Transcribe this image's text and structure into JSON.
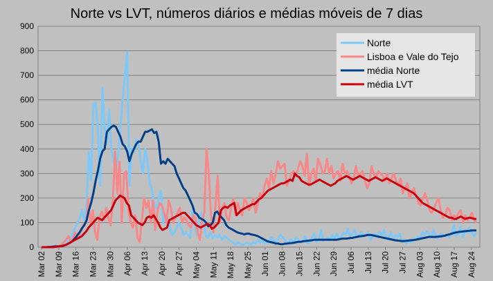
{
  "chart_data": {
    "type": "line",
    "title": "Norte vs LVT, números diários e médias móveis de 7 dias",
    "xlabel": "",
    "ylabel": "",
    "ylim": [
      0,
      900
    ],
    "yticks": [
      0,
      100,
      200,
      300,
      400,
      500,
      600,
      700,
      800,
      900
    ],
    "xtick_labels": [
      "Mar 02",
      "Mar 09",
      "Mar 16",
      "Mar 23",
      "Mar 30",
      "Apr 06",
      "Apr 13",
      "Apr 20",
      "Apr 27",
      "May 04",
      "May 11",
      "May 18",
      "May 25",
      "Jun 01",
      "Jun 08",
      "Jun 15",
      "Jun 22",
      "Jun 29",
      "Jul 06",
      "Jul 13",
      "Jul 20",
      "Jul 27",
      "Aug 03",
      "Aug 10",
      "Aug 17",
      "Aug 24"
    ],
    "x_start": "2020-03-02",
    "x_end": "2020-08-26",
    "grid": true,
    "legend_position": "top-right",
    "series": [
      {
        "name": "Norte",
        "color": "#7ec8f8",
        "values": [
          0,
          0,
          0,
          2,
          2,
          4,
          5,
          3,
          3,
          5,
          10,
          15,
          35,
          40,
          60,
          80,
          100,
          120,
          150,
          110,
          180,
          390,
          270,
          580,
          590,
          480,
          250,
          650,
          480,
          420,
          560,
          400,
          350,
          300,
          380,
          490,
          600,
          700,
          795,
          250,
          400,
          390,
          440,
          420,
          350,
          300,
          400,
          350,
          260,
          240,
          170,
          160,
          200,
          230,
          100,
          130,
          110,
          80,
          50,
          60,
          80,
          100,
          80,
          50,
          60,
          50,
          40,
          150,
          90,
          50,
          120,
          140,
          100,
          45,
          40,
          60,
          35,
          50,
          40,
          50,
          30,
          45,
          40,
          30,
          25,
          20,
          10,
          20,
          15,
          10,
          10,
          20,
          15,
          10,
          20,
          15,
          30,
          20,
          25,
          15,
          20,
          20,
          40,
          30,
          20,
          30,
          50,
          40,
          30,
          20,
          25,
          30,
          20,
          40,
          30,
          20,
          25,
          45,
          15,
          20,
          40,
          55,
          20,
          30,
          70,
          25,
          30,
          40,
          30,
          50,
          35,
          55,
          35,
          45,
          60,
          50,
          75,
          45,
          55,
          70,
          40,
          50,
          60,
          45,
          50,
          60,
          30,
          45,
          55,
          45,
          60,
          50,
          70,
          40,
          40,
          60,
          35,
          50,
          40,
          55,
          20,
          30,
          15,
          25,
          20,
          35,
          30,
          45,
          35,
          60,
          50,
          65,
          55,
          40,
          70,
          45,
          35,
          55,
          50,
          45,
          50,
          40,
          55,
          90,
          45,
          55,
          85,
          40,
          70,
          60,
          80,
          55,
          45,
          60
        ],
        "approx": true
      },
      {
        "name": "Lisboa e Vale do Tejo",
        "color": "#f88888",
        "values": [
          0,
          0,
          0,
          0,
          0,
          0,
          5,
          3,
          5,
          10,
          20,
          30,
          45,
          25,
          30,
          60,
          40,
          50,
          70,
          95,
          100,
          200,
          90,
          150,
          60,
          30,
          120,
          145,
          110,
          160,
          120,
          90,
          200,
          390,
          220,
          350,
          100,
          300,
          310,
          150,
          100,
          80,
          130,
          40,
          20,
          110,
          200,
          160,
          190,
          100,
          190,
          70,
          150,
          180,
          170,
          140,
          100,
          190,
          160,
          100,
          120,
          140,
          160,
          100,
          120,
          110,
          90,
          80,
          130,
          120,
          60,
          30,
          110,
          140,
          400,
          300,
          130,
          60,
          170,
          290,
          100,
          160,
          180,
          120,
          110,
          160,
          200,
          130,
          180,
          150,
          130,
          200,
          180,
          150,
          170,
          200,
          140,
          180,
          220,
          200,
          250,
          280,
          240,
          310,
          260,
          300,
          350,
          320,
          330,
          340,
          250,
          270,
          300,
          310,
          290,
          320,
          350,
          330,
          290,
          380,
          250,
          300,
          320,
          270,
          360,
          340,
          300,
          310,
          360,
          300,
          330,
          280,
          300,
          310,
          270,
          340,
          300,
          310,
          290,
          260,
          280,
          330,
          290,
          300,
          310,
          270,
          240,
          260,
          330,
          300,
          280,
          310,
          300,
          290,
          270,
          300,
          260,
          280,
          300,
          270,
          250,
          280,
          220,
          240,
          260,
          200,
          220,
          240,
          210,
          180,
          170,
          200,
          220,
          190,
          150,
          140,
          160,
          180,
          200,
          150,
          120,
          130,
          160,
          150,
          110,
          130,
          120,
          140,
          150,
          100,
          130,
          110,
          120,
          140,
          110,
          100
        ],
        "approx": true
      },
      {
        "name": "média Norte",
        "color": "#003f88",
        "values": [
          0,
          0,
          0,
          1,
          1,
          2,
          3,
          3,
          4,
          5,
          7,
          10,
          15,
          20,
          28,
          38,
          50,
          62,
          78,
          90,
          110,
          150,
          180,
          220,
          270,
          310,
          360,
          390,
          400,
          470,
          480,
          490,
          495,
          490,
          470,
          450,
          420,
          410,
          390,
          350,
          380,
          400,
          420,
          430,
          430,
          450,
          470,
          470,
          475,
          480,
          465,
          470,
          430,
          340,
          350,
          340,
          360,
          350,
          340,
          330,
          300,
          280,
          260,
          240,
          230,
          210,
          190,
          170,
          140,
          135,
          120,
          115,
          110,
          100,
          85,
          90,
          100,
          140,
          145,
          130,
          120,
          110,
          90,
          80,
          75,
          70,
          65,
          60,
          57,
          55,
          52,
          55,
          55,
          52,
          50,
          48,
          45,
          40,
          35,
          30,
          25,
          22,
          20,
          18,
          15,
          15,
          12,
          12,
          14,
          15,
          16,
          17,
          18,
          20,
          22,
          22,
          24,
          25,
          26,
          27,
          28,
          30,
          30,
          30,
          30,
          30,
          30,
          30,
          30,
          30,
          30,
          30,
          32,
          34,
          35,
          35,
          36,
          37,
          38,
          40,
          42,
          44,
          45,
          46,
          48,
          50,
          50,
          48,
          46,
          44,
          42,
          40,
          38,
          36,
          34,
          32,
          30,
          28,
          27,
          26,
          25,
          25,
          26,
          27,
          28,
          29,
          30,
          32,
          34,
          36,
          38,
          40,
          42,
          42,
          42,
          42,
          43,
          44,
          45,
          47,
          50,
          52,
          55,
          58,
          60,
          62,
          63,
          64,
          65,
          66,
          67,
          68,
          68,
          68
        ],
        "approx": true
      },
      {
        "name": "média LVT",
        "color": "#c8000c",
        "values": [
          0,
          0,
          0,
          0,
          0,
          0,
          1,
          2,
          3,
          4,
          7,
          10,
          15,
          20,
          25,
          30,
          35,
          40,
          45,
          55,
          65,
          80,
          90,
          100,
          110,
          120,
          115,
          110,
          120,
          130,
          140,
          150,
          170,
          190,
          200,
          210,
          205,
          200,
          180,
          170,
          130,
          120,
          110,
          100,
          95,
          90,
          100,
          120,
          125,
          120,
          130,
          115,
          100,
          80,
          70,
          75,
          80,
          110,
          115,
          120,
          125,
          130,
          135,
          140,
          140,
          130,
          120,
          110,
          100,
          90,
          85,
          80,
          85,
          90,
          95,
          90,
          75,
          80,
          90,
          100,
          150,
          160,
          165,
          160,
          170,
          175,
          180,
          130,
          140,
          150,
          155,
          160,
          165,
          170,
          175,
          175,
          185,
          195,
          200,
          210,
          220,
          230,
          235,
          240,
          245,
          250,
          255,
          260,
          260,
          265,
          270,
          275,
          270,
          300,
          290,
          285,
          270,
          265,
          260,
          255,
          255,
          260,
          265,
          270,
          275,
          270,
          265,
          260,
          255,
          250,
          255,
          260,
          270,
          275,
          280,
          285,
          290,
          285,
          280,
          275,
          280,
          285,
          290,
          285,
          280,
          275,
          270,
          275,
          280,
          285,
          280,
          275,
          270,
          275,
          280,
          275,
          270,
          265,
          260,
          255,
          250,
          245,
          240,
          235,
          230,
          225,
          220,
          210,
          200,
          190,
          180,
          175,
          170,
          165,
          160,
          155,
          150,
          145,
          140,
          135,
          130,
          125,
          120,
          120,
          115,
          115,
          120,
          125,
          120,
          115,
          118,
          120,
          118,
          115,
          115
        ],
        "approx": true
      }
    ]
  }
}
